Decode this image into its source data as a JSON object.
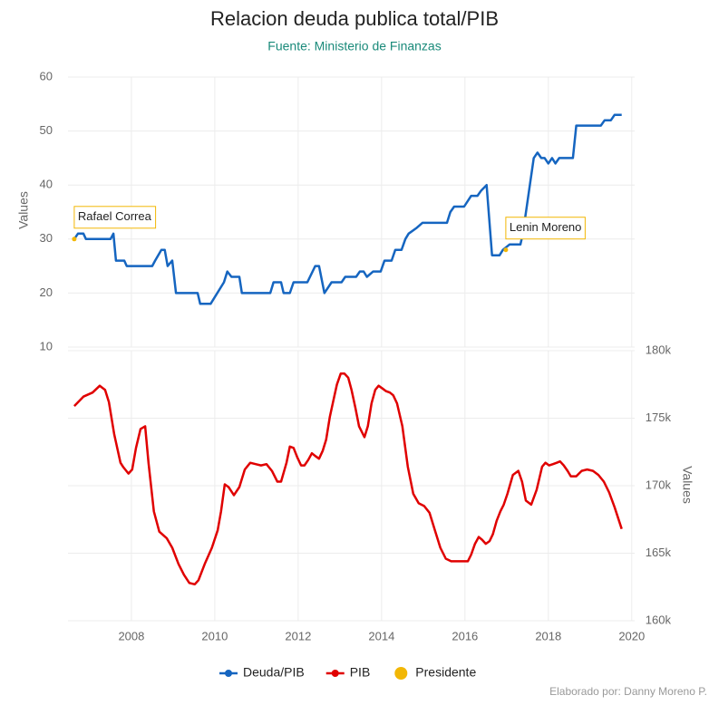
{
  "chart_data": [
    {
      "type": "line",
      "title": "Relacion deuda publica total/PIB",
      "subtitle": "Fuente: Ministerio de Finanzas",
      "ylabel": "Values",
      "yaxis_side": "left",
      "grid": true,
      "xlim": [
        2006.48,
        2020.07
      ],
      "ylim": [
        10,
        60
      ],
      "yticks": [
        10,
        20,
        30,
        40,
        50,
        60
      ],
      "series": [
        {
          "name": "Deuda/PIB",
          "type": "line",
          "color": "#1565c0",
          "x": [
            2006.63,
            2006.72,
            2006.85,
            2006.91,
            2007.5,
            2007.57,
            2007.63,
            2007.83,
            2007.89,
            2008.5,
            2008.57,
            2008.72,
            2008.8,
            2008.87,
            2008.98,
            2009.07,
            2009.59,
            2009.65,
            2009.9,
            2010.22,
            2010.3,
            2010.4,
            2010.59,
            2010.65,
            2011.33,
            2011.41,
            2011.59,
            2011.65,
            2011.8,
            2011.89,
            2012.22,
            2012.41,
            2012.5,
            2012.63,
            2012.8,
            2013.04,
            2013.13,
            2013.39,
            2013.48,
            2013.57,
            2013.65,
            2013.8,
            2013.98,
            2014.07,
            2014.24,
            2014.33,
            2014.48,
            2014.57,
            2014.65,
            2014.83,
            2014.98,
            2015.57,
            2015.65,
            2015.74,
            2015.98,
            2016.15,
            2016.3,
            2016.39,
            2016.52,
            2016.65,
            2016.83,
            2016.91,
            2017.07,
            2017.33,
            2017.39,
            2017.65,
            2017.74,
            2017.83,
            2017.91,
            2018.0,
            2018.09,
            2018.17,
            2018.26,
            2018.59,
            2018.67,
            2019.26,
            2019.35,
            2019.5,
            2019.59,
            2019.76
          ],
          "values": [
            30,
            31,
            31,
            30,
            30,
            31,
            26,
            26,
            25,
            25,
            26,
            28,
            28,
            25,
            26,
            20,
            20,
            18,
            18,
            22,
            24,
            23,
            23,
            20,
            20,
            22,
            22,
            20,
            20,
            22,
            22,
            25,
            25,
            20,
            22,
            22,
            23,
            23,
            24,
            24,
            23,
            24,
            24,
            26,
            26,
            28,
            28,
            30,
            31,
            32,
            33,
            33,
            35,
            36,
            36,
            38,
            38,
            39,
            40,
            27,
            27,
            28,
            29,
            29,
            31,
            45,
            46,
            45,
            45,
            44,
            45,
            44,
            45,
            45,
            51,
            51,
            52,
            52,
            53,
            53
          ]
        },
        {
          "name": "Presidente",
          "type": "scatter",
          "color": "#f2b705",
          "x": [
            2006.63,
            2016.98
          ],
          "values": [
            30,
            28
          ],
          "labels": [
            "Rafael Correa",
            "Lenin Moreno"
          ]
        }
      ]
    },
    {
      "type": "line",
      "ylabel": "Values",
      "yaxis_side": "right",
      "grid": true,
      "xlim": [
        2006.48,
        2020.07
      ],
      "xticks": [
        2008,
        2010,
        2012,
        2014,
        2016,
        2018,
        2020
      ],
      "ylim": [
        160000,
        180000
      ],
      "yticks": [
        {
          "value": 160000,
          "label": "160k"
        },
        {
          "value": 165000,
          "label": "165k"
        },
        {
          "value": 170000,
          "label": "170k"
        },
        {
          "value": 175000,
          "label": "175k"
        },
        {
          "value": 180000,
          "label": "180k"
        }
      ],
      "series": [
        {
          "name": "PIB",
          "type": "line",
          "color": "#e00000",
          "x": [
            2006.63,
            2006.85,
            2007.07,
            2007.24,
            2007.37,
            2007.46,
            2007.59,
            2007.74,
            2007.8,
            2007.93,
            2008.02,
            2008.11,
            2008.22,
            2008.33,
            2008.41,
            2008.54,
            2008.67,
            2008.85,
            2008.98,
            2009.13,
            2009.26,
            2009.39,
            2009.52,
            2009.61,
            2009.76,
            2009.93,
            2010.07,
            2010.15,
            2010.24,
            2010.33,
            2010.46,
            2010.59,
            2010.72,
            2010.85,
            2010.98,
            2011.11,
            2011.24,
            2011.37,
            2011.5,
            2011.59,
            2011.72,
            2011.8,
            2011.89,
            2011.98,
            2012.07,
            2012.15,
            2012.24,
            2012.33,
            2012.41,
            2012.5,
            2012.59,
            2012.67,
            2012.76,
            2012.85,
            2012.93,
            2013.02,
            2013.11,
            2013.2,
            2013.28,
            2013.37,
            2013.46,
            2013.59,
            2013.67,
            2013.76,
            2013.85,
            2013.93,
            2014.02,
            2014.11,
            2014.2,
            2014.28,
            2014.37,
            2014.5,
            2014.63,
            2014.76,
            2014.89,
            2015.02,
            2015.15,
            2015.28,
            2015.41,
            2015.54,
            2015.67,
            2015.8,
            2015.93,
            2016.07,
            2016.15,
            2016.24,
            2016.33,
            2016.41,
            2016.5,
            2016.59,
            2016.67,
            2016.76,
            2016.85,
            2016.93,
            2017.02,
            2017.15,
            2017.28,
            2017.37,
            2017.46,
            2017.59,
            2017.72,
            2017.85,
            2017.93,
            2018.02,
            2018.11,
            2018.2,
            2018.28,
            2018.37,
            2018.46,
            2018.54,
            2018.67,
            2018.8,
            2018.93,
            2019.07,
            2019.2,
            2019.33,
            2019.46,
            2019.59,
            2019.76
          ],
          "values": [
            175900,
            176600,
            176900,
            177400,
            177100,
            176200,
            173800,
            171700,
            171400,
            170900,
            171200,
            172800,
            174200,
            174400,
            171700,
            168100,
            166600,
            166100,
            165400,
            164200,
            163400,
            162800,
            162700,
            163000,
            164200,
            165400,
            166700,
            168100,
            170100,
            169900,
            169300,
            169900,
            171200,
            171700,
            171600,
            171500,
            171600,
            171100,
            170300,
            170300,
            171700,
            172900,
            172800,
            172100,
            171500,
            171500,
            171900,
            172400,
            172200,
            172000,
            172600,
            173400,
            175100,
            176400,
            177500,
            178300,
            178300,
            178000,
            177100,
            175800,
            174400,
            173600,
            174400,
            176100,
            177100,
            177400,
            177200,
            177000,
            176900,
            176700,
            176100,
            174400,
            171400,
            169400,
            168700,
            168500,
            168000,
            166700,
            165400,
            164600,
            164400,
            164400,
            164400,
            164400,
            164900,
            165700,
            166200,
            166000,
            165700,
            165900,
            166400,
            167400,
            168100,
            168600,
            169400,
            170800,
            171100,
            170300,
            168900,
            168600,
            169700,
            171400,
            171700,
            171500,
            171600,
            171700,
            171800,
            171500,
            171100,
            170700,
            170700,
            171100,
            171200,
            171100,
            170800,
            170300,
            169500,
            168400,
            166800
          ]
        }
      ]
    }
  ],
  "credit": "Elaborado por: Danny Moreno P."
}
